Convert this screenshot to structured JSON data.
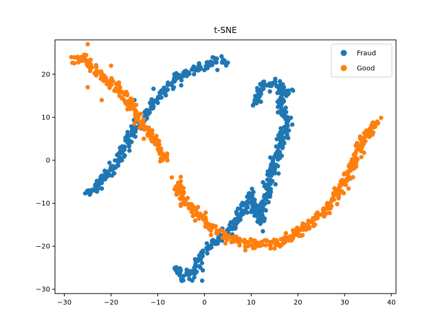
{
  "chart_data": {
    "type": "scatter",
    "title": "t-SNE",
    "xlabel": "",
    "ylabel": "",
    "xlim": [
      -32,
      41
    ],
    "ylim": [
      -31,
      28
    ],
    "xticks": [
      -30,
      -20,
      -10,
      0,
      10,
      20,
      30,
      40
    ],
    "yticks": [
      -30,
      -20,
      -10,
      0,
      10,
      20
    ],
    "grid": false,
    "legend_position": "top-right",
    "series": [
      {
        "name": "Fraud",
        "color": "#1f77b4",
        "polylines": [
          [
            [
              -25,
              -8
            ],
            [
              -22,
              -5
            ],
            [
              -19,
              -1
            ],
            [
              -17,
              3
            ],
            [
              -15,
              7
            ],
            [
              -13,
              10
            ],
            [
              -11,
              13
            ],
            [
              -9,
              16
            ],
            [
              -6,
              19
            ],
            [
              -3,
              21
            ],
            [
              0,
              22
            ],
            [
              2,
              23
            ],
            [
              5,
              22.7
            ]
          ],
          [
            [
              -6,
              -25
            ],
            [
              -5,
              -26.5
            ],
            [
              -3,
              -27
            ],
            [
              -1,
              -23
            ],
            [
              1,
              -20
            ],
            [
              3,
              -18.5
            ],
            [
              5,
              -17
            ],
            [
              7,
              -14
            ],
            [
              9,
              -10
            ],
            [
              10,
              -8
            ],
            [
              12,
              -14
            ],
            [
              13,
              -10
            ],
            [
              14,
              -4
            ],
            [
              15,
              0
            ],
            [
              16,
              3
            ],
            [
              17,
              6
            ],
            [
              18,
              9
            ],
            [
              16,
              13
            ]
          ],
          [
            [
              11,
              13
            ],
            [
              12,
              17
            ],
            [
              15,
              18
            ],
            [
              18,
              16
            ],
            [
              16,
              14
            ]
          ]
        ],
        "extra_points": [
          [
            -15,
            14
          ],
          [
            12.5,
            -16.5
          ],
          [
            -0.5,
            -28
          ],
          [
            14,
            16
          ],
          [
            17,
            17
          ]
        ]
      },
      {
        "name": "Good",
        "color": "#ff7f0e",
        "polylines": [
          [
            [
              -28,
              23
            ],
            [
              -26,
              24
            ],
            [
              -24,
              21
            ],
            [
              -22,
              19
            ],
            [
              -20,
              18
            ],
            [
              -18,
              16
            ],
            [
              -17,
              15
            ],
            [
              -16,
              13
            ],
            [
              -15,
              11
            ],
            [
              -13,
              8
            ],
            [
              -11,
              5
            ],
            [
              -9,
              2
            ],
            [
              -8,
              0
            ]
          ],
          [
            [
              -6,
              -5
            ],
            [
              -5,
              -8
            ],
            [
              -4,
              -10
            ],
            [
              -2,
              -12
            ],
            [
              0,
              -14
            ],
            [
              2,
              -16
            ],
            [
              4,
              -17.5
            ],
            [
              6,
              -18.5
            ],
            [
              8,
              -19
            ],
            [
              10,
              -19.5
            ],
            [
              13,
              -19.5
            ],
            [
              16,
              -19
            ],
            [
              19,
              -17.5
            ],
            [
              22,
              -15.5
            ],
            [
              25,
              -12.5
            ],
            [
              28,
              -8.5
            ],
            [
              30,
              -5
            ],
            [
              32,
              0
            ],
            [
              34,
              4
            ],
            [
              35.5,
              7
            ],
            [
              37,
              9
            ]
          ]
        ],
        "extra_points": [
          [
            -25,
            27
          ],
          [
            -28.5,
            24
          ],
          [
            -20,
            22
          ],
          [
            -25,
            17
          ],
          [
            -22,
            14
          ],
          [
            -15,
            8.5
          ],
          [
            -13,
            5
          ],
          [
            -9,
            0
          ],
          [
            -7,
            -4
          ],
          [
            -6,
            -8
          ],
          [
            15,
            -20.5
          ],
          [
            5,
            -18
          ],
          [
            -2,
            -14
          ]
        ]
      }
    ]
  }
}
